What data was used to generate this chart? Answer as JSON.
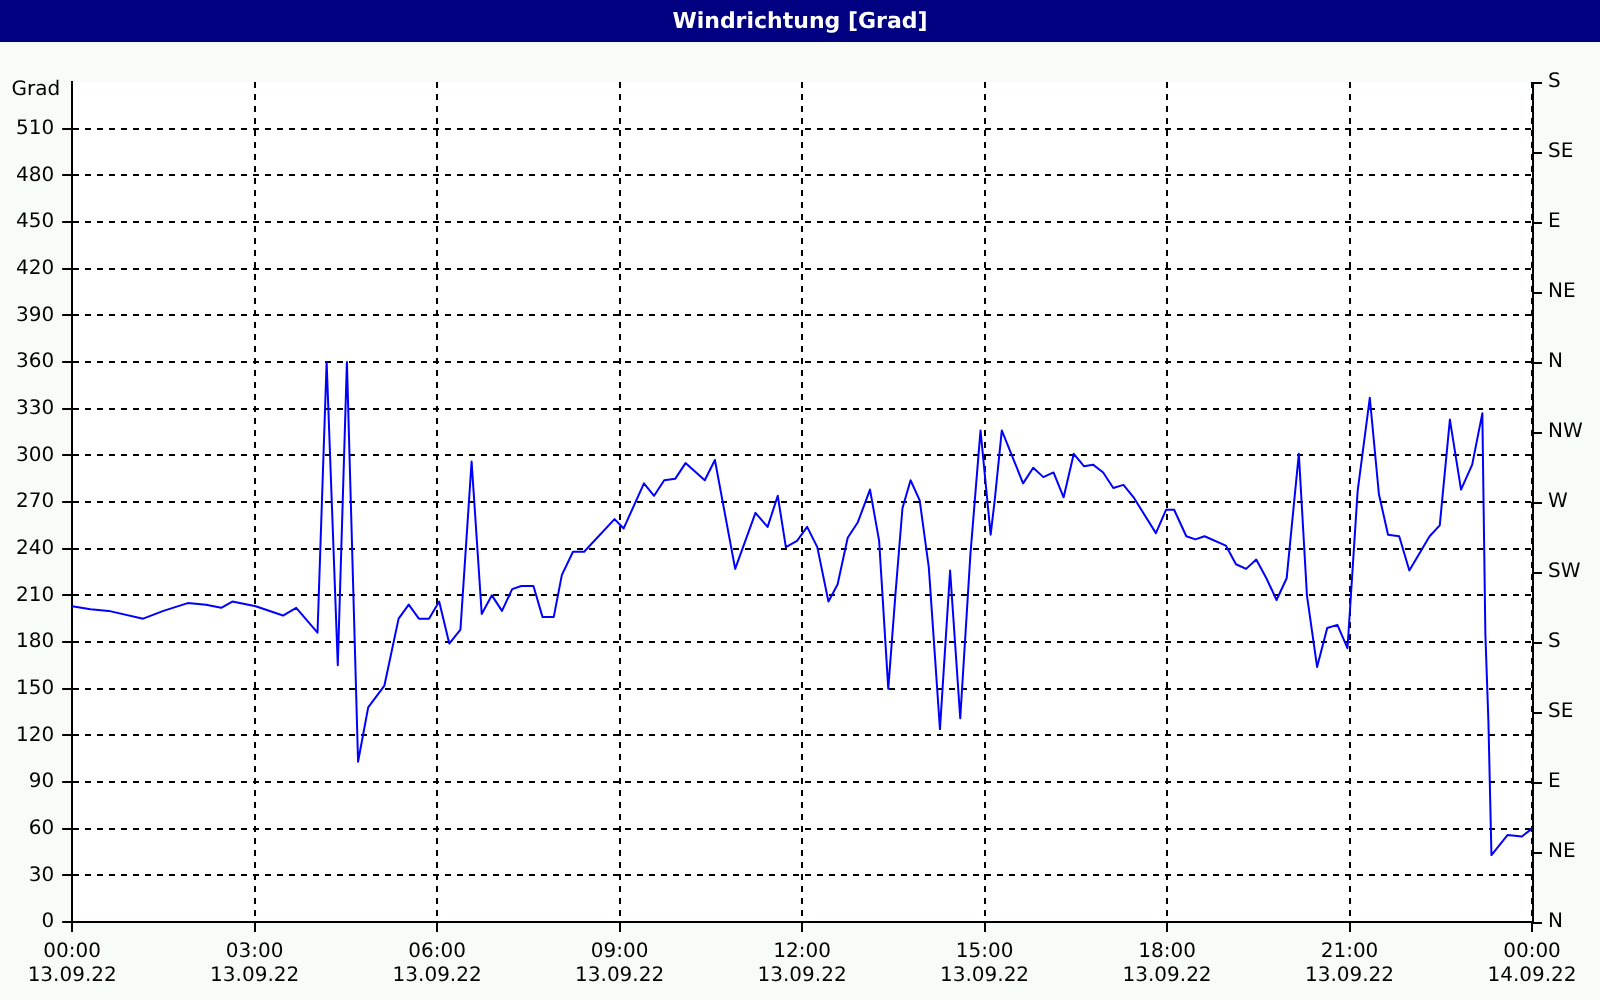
{
  "chart_data": {
    "type": "line",
    "title": "Windrichtung [Grad]",
    "ylabel": "Grad",
    "x": [
      "--09-13T00:00",
      "--09-13T00:18",
      "--09-13T00:36",
      "--09-13T01:10",
      "--09-13T01:30",
      "--09-13T01:54",
      "--09-13T02:12",
      "--09-13T02:27",
      "--09-13T02:38",
      "--09-13T03:01",
      "--09-13T03:28",
      "--09-13T03:41",
      "--09-13T04:02",
      "--09-13T04:11",
      "--09-13T04:22",
      "--09-13T04:31",
      "--09-13T04:42",
      "--09-13T04:52",
      "--09-13T05:08",
      "--09-13T05:22",
      "--09-13T05:32",
      "--09-13T05:42",
      "--09-13T05:52",
      "--09-13T06:02",
      "--09-13T06:12",
      "--09-13T06:23",
      "--09-13T06:34",
      "--09-13T06:44",
      "--09-13T06:54",
      "--09-13T07:04",
      "--09-13T07:14",
      "--09-13T07:23",
      "--09-13T07:35",
      "--09-13T07:44",
      "--09-13T07:55",
      "--09-13T08:03",
      "--09-13T08:14",
      "--09-13T08:25",
      "--09-13T08:55",
      "--09-13T09:04",
      "--09-13T09:24",
      "--09-13T09:34",
      "--09-13T09:44",
      "--09-13T09:55",
      "--09-13T10:05",
      "--09-13T10:24",
      "--09-13T10:34",
      "--09-13T10:54",
      "--09-13T11:14",
      "--09-13T11:26",
      "--09-13T11:36",
      "--09-13T11:44",
      "--09-13T11:55",
      "--09-13T12:05",
      "--09-13T12:15",
      "--09-13T12:26",
      "--09-13T12:35",
      "--09-13T12:45",
      "--09-13T12:55",
      "--09-13T13:07",
      "--09-13T13:16",
      "--09-13T13:25",
      "--09-13T13:32",
      "--09-13T13:39",
      "--09-13T13:47",
      "--09-13T13:56",
      "--09-13T14:05",
      "--09-13T14:16",
      "--09-13T14:26",
      "--09-13T14:36",
      "--09-13T14:46",
      "--09-13T14:56",
      "--09-13T15:06",
      "--09-13T15:10",
      "--09-13T15:17",
      "--09-13T15:38",
      "--09-13T15:48",
      "--09-13T15:58",
      "--09-13T16:08",
      "--09-13T16:18",
      "--09-13T16:28",
      "--09-13T16:38",
      "--09-13T16:47",
      "--09-13T16:57",
      "--09-13T17:07",
      "--09-13T17:17",
      "--09-13T17:27",
      "--09-13T17:49",
      "--09-13T17:59",
      "--09-13T18:07",
      "--09-13T18:19",
      "--09-13T18:28",
      "--09-13T18:37",
      "--09-13T18:58",
      "--09-13T19:08",
      "--09-13T19:18",
      "--09-13T19:28",
      "--09-13T19:38",
      "--09-13T19:48",
      "--09-13T19:58",
      "--09-13T20:10",
      "--09-13T20:18",
      "--09-13T20:28",
      "--09-13T20:38",
      "--09-13T20:48",
      "--09-13T20:58",
      "--09-13T21:08",
      "--09-13T21:20",
      "--09-13T21:29",
      "--09-13T21:38",
      "--09-13T21:49",
      "--09-13T21:59",
      "--09-13T22:19",
      "--09-13T22:29",
      "--09-13T22:39",
      "--09-13T22:50",
      "--09-13T23:01",
      "--09-13T23:11",
      "--09-13T23:14",
      "--09-13T23:17",
      "--09-13T23:20",
      "--09-13T23:36",
      "--09-13T23:50",
      "--09-14T00:00"
    ],
    "series": [
      {
        "color": "#0000ff",
        "values": [
          203,
          201,
          200,
          195,
          200,
          205,
          204,
          202,
          206,
          203,
          197,
          202,
          186,
          360,
          165,
          360,
          103,
          138,
          152,
          195,
          204,
          195,
          195,
          206,
          179,
          188,
          296,
          198,
          210,
          200,
          214,
          216,
          216,
          196,
          196,
          223,
          238,
          238,
          259,
          253,
          282,
          274,
          284,
          285,
          295,
          284,
          297,
          227,
          263,
          254,
          274,
          241,
          245,
          254,
          241,
          206,
          217,
          247,
          257,
          278,
          245,
          150,
          210,
          266,
          284,
          271,
          228,
          124,
          226,
          131,
          236,
          316,
          249,
          271,
          316,
          282,
          292,
          286,
          289,
          273,
          301,
          293,
          294,
          289,
          279,
          281,
          273,
          250,
          265,
          265,
          248,
          246,
          248,
          242,
          230,
          227,
          233,
          221,
          207,
          221,
          301,
          210,
          164,
          189,
          191,
          176,
          277,
          337,
          275,
          249,
          248,
          226,
          248,
          255,
          323,
          278,
          294,
          327,
          185,
          129,
          43,
          56,
          55,
          60
        ]
      }
    ],
    "xlim": [
      "--09-13T00:00",
      "--09-14T00:00"
    ],
    "xticks": [
      {
        "value": "--09-13T00:00",
        "label": "00:00\n13.09.22"
      },
      {
        "value": "--09-13T03:00",
        "label": "03:00\n13.09.22"
      },
      {
        "value": "--09-13T06:00",
        "label": "06:00\n13.09.22"
      },
      {
        "value": "--09-13T09:00",
        "label": "09:00\n13.09.22"
      },
      {
        "value": "--09-13T12:00",
        "label": "12:00\n13.09.22"
      },
      {
        "value": "--09-13T15:00",
        "label": "15:00\n13.09.22"
      },
      {
        "value": "--09-13T18:00",
        "label": "18:00\n13.09.22"
      },
      {
        "value": "--09-13T21:00",
        "label": "21:00\n13.09.22"
      },
      {
        "value": "--09-14T00:00",
        "label": "00:00\n14.09.22"
      }
    ],
    "ylim": [
      0,
      540
    ],
    "yticks": [
      0,
      30,
      60,
      90,
      120,
      150,
      180,
      210,
      240,
      270,
      300,
      330,
      360,
      390,
      420,
      450,
      480,
      510
    ],
    "annotations": [
      "N",
      "NE",
      "E",
      "SE",
      "S",
      "SW",
      "W",
      "NW",
      "N",
      "NE",
      "E",
      "SE",
      "S"
    ],
    "grid": true,
    "legend": false,
    "marker": "none",
    "line_style": "solid"
  }
}
